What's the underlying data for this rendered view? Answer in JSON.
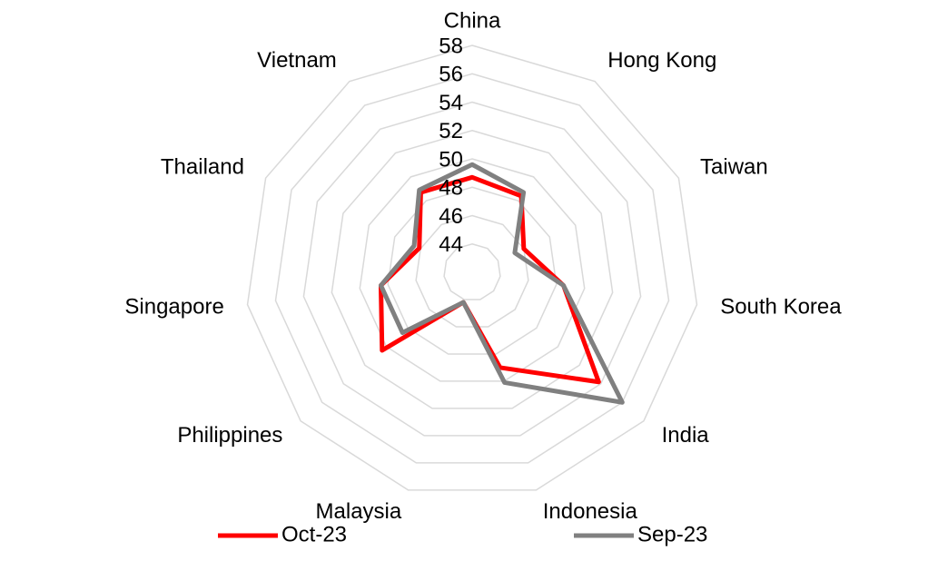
{
  "chart_data": {
    "type": "radar",
    "categories": [
      "China",
      "Hong Kong",
      "Taiwan",
      "South Korea",
      "India",
      "Indonesia",
      "Malaysia",
      "Philippines",
      "Singapore",
      "Thailand",
      "Vietnam"
    ],
    "series": [
      {
        "name": "Oct-23",
        "color": "#ff0000",
        "values": [
          48.7,
          48.4,
          46.0,
          48.5,
          53.8,
          49.0,
          44.2,
          50.4,
          48.5,
          46.1,
          48.7
        ]
      },
      {
        "name": "Sep-23",
        "color": "#808080",
        "values": [
          49.6,
          48.7,
          45.3,
          48.5,
          56.0,
          50.1,
          44.2,
          48.5,
          48.5,
          46.5,
          48.9
        ]
      }
    ],
    "ylim": [
      42,
      58
    ],
    "yticks": [
      44,
      46,
      48,
      50,
      52,
      54,
      56,
      58
    ],
    "grid": true
  }
}
